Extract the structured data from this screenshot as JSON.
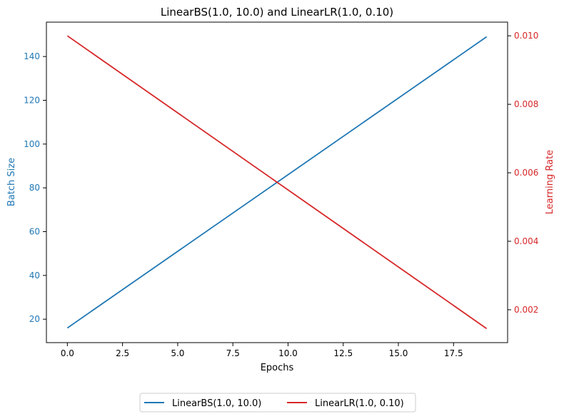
{
  "chart_data": {
    "type": "line",
    "title": "LinearBS(1.0, 10.0) and LinearLR(1.0, 0.10)",
    "xlabel": "Epochs",
    "ylabel_left": "Batch Size",
    "ylabel_right": "Learning Rate",
    "xlim": [
      -0.95,
      19.95
    ],
    "ylim_left": [
      9.3,
      155.7
    ],
    "ylim_right": [
      0.00104,
      0.0104
    ],
    "x_ticks": [
      0,
      2.5,
      5,
      7.5,
      10,
      12.5,
      15,
      17.5
    ],
    "x_tick_labels": [
      "0.0",
      "2.5",
      "5.0",
      "7.5",
      "10.0",
      "12.5",
      "15.0",
      "17.5"
    ],
    "y_left_ticks": [
      20,
      40,
      60,
      80,
      100,
      120,
      140
    ],
    "y_left_tick_labels": [
      "20",
      "40",
      "60",
      "80",
      "100",
      "120",
      "140"
    ],
    "y_right_ticks": [
      0.002,
      0.004,
      0.006,
      0.008,
      0.01
    ],
    "y_right_tick_labels": [
      "0.002",
      "0.004",
      "0.006",
      "0.008",
      "0.010"
    ],
    "grid": false,
    "legend_placement": "bottom-center",
    "series": [
      {
        "name": "LinearBS(1.0, 10.0)",
        "axis": "left",
        "color": "#1f77b4",
        "x": [
          0,
          19
        ],
        "values": [
          16,
          149
        ]
      },
      {
        "name": "LinearLR(1.0, 0.10)",
        "axis": "right",
        "color": "#d62728",
        "x": [
          0,
          19
        ],
        "values": [
          0.01,
          0.00145
        ]
      }
    ],
    "left_axis_color": "#1f77b4",
    "right_axis_color": "#d62728"
  }
}
